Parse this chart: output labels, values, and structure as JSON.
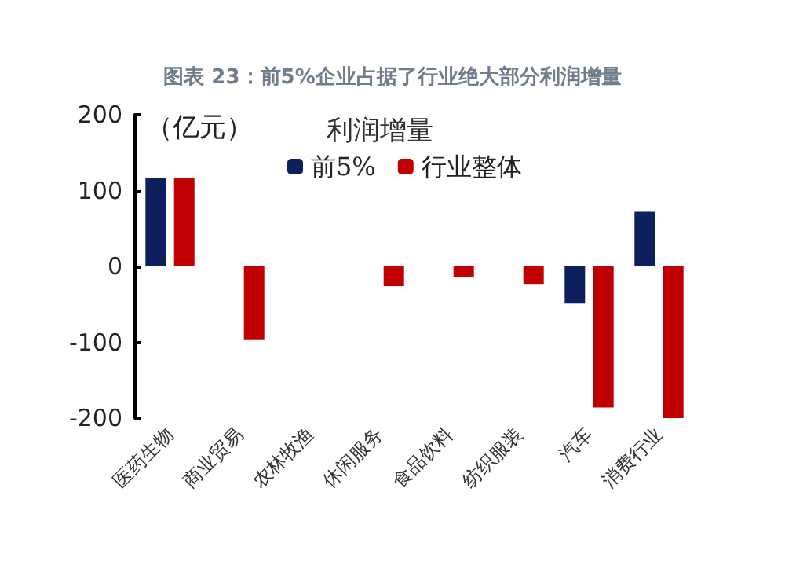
{
  "chart_data": {
    "type": "bar",
    "title": "图表 23：前5%企业占据了行业绝大部分利润增量",
    "ylabel": "（亿元）",
    "legend_title": "利润增量",
    "categories": [
      "医药生物",
      "商业贸易",
      "农林牧渔",
      "休闲服务",
      "食品饮料",
      "纺织服装",
      "汽车",
      "消费行业"
    ],
    "series": [
      {
        "name": "前5%",
        "color": "#0d1f5c",
        "values": [
          117,
          null,
          null,
          null,
          null,
          null,
          -49,
          72
        ]
      },
      {
        "name": "行业整体",
        "color": "#c00000",
        "values": [
          117,
          -96,
          null,
          -26,
          -14,
          -24,
          -186,
          -200
        ]
      }
    ],
    "ylim": [
      -200,
      200
    ],
    "yticks": [
      -200,
      -100,
      0,
      100,
      200
    ],
    "grid": false,
    "legend": "top"
  }
}
